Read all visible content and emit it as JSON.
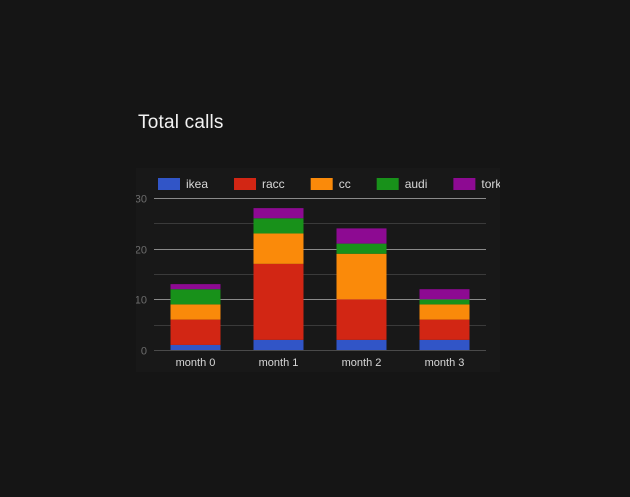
{
  "chart_data": {
    "type": "bar",
    "stacked": true,
    "title": "Total calls",
    "xlabel": "",
    "ylabel": "",
    "categories": [
      "month 0",
      "month 1",
      "month 2",
      "month 3"
    ],
    "series": [
      {
        "name": "ikea",
        "color": "#3155c7",
        "values": [
          1,
          2,
          2,
          2
        ]
      },
      {
        "name": "racc",
        "color": "#d22614",
        "values": [
          5,
          15,
          8,
          4
        ]
      },
      {
        "name": "cc",
        "color": "#fa8a0a",
        "values": [
          3,
          6,
          9,
          3
        ]
      },
      {
        "name": "audi",
        "color": "#18911a",
        "values": [
          3,
          3,
          2,
          1
        ]
      },
      {
        "name": "tork",
        "color": "#8d0a92",
        "values": [
          1,
          2,
          3,
          2
        ]
      }
    ],
    "ylim": [
      0,
      30
    ],
    "yticks": [
      0,
      10,
      20,
      30
    ],
    "grid": true,
    "legend_position": "top"
  }
}
